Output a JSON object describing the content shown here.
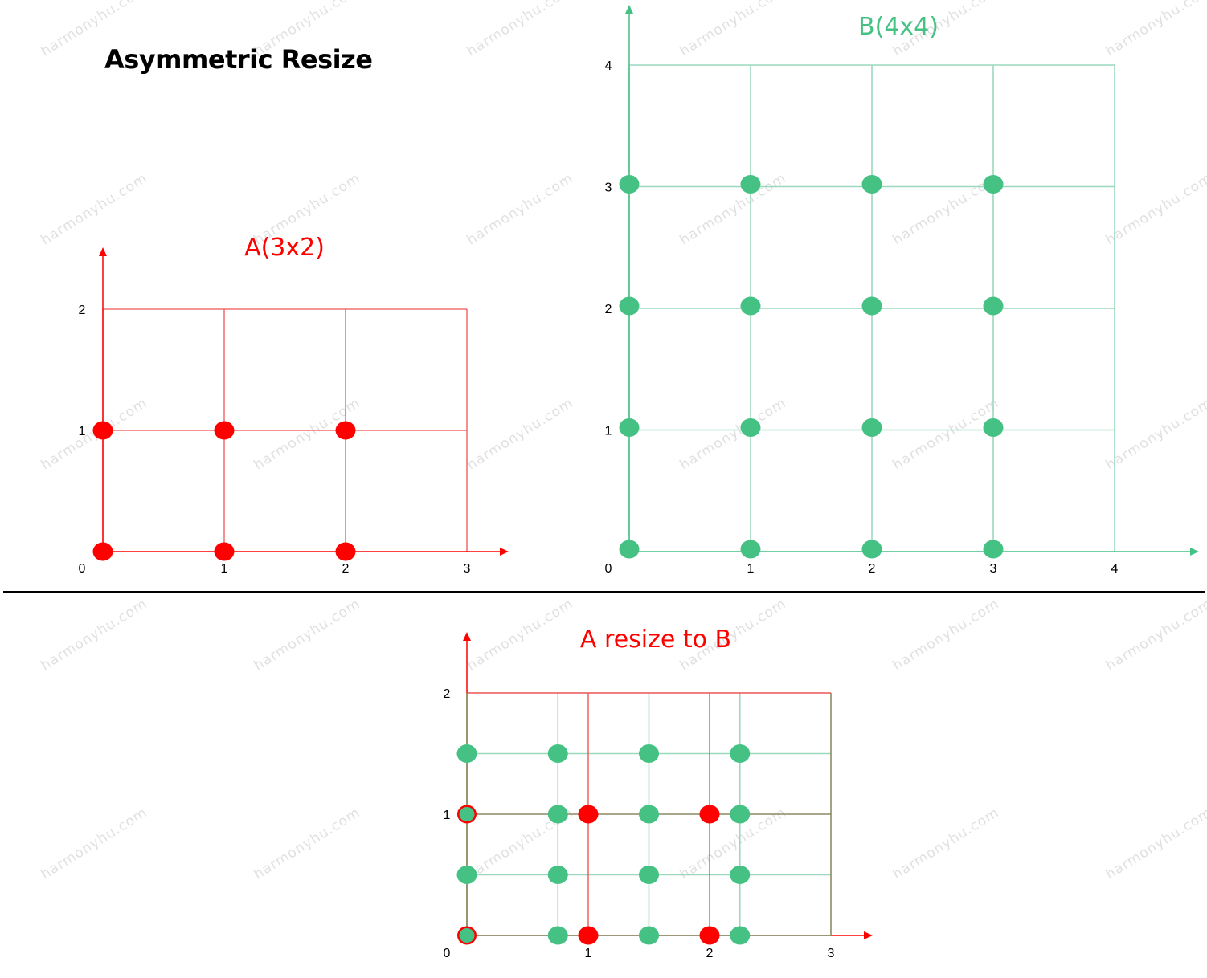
{
  "title": "Asymmetric Resize",
  "watermark": "harmonyhu.com",
  "colors": {
    "red": "#ff0000",
    "red_grid": "#ee5555",
    "green": "#45c184",
    "green_grid": "#9ad8bd",
    "olive_grid": "#8c8a62"
  },
  "panels": [
    {
      "id": "panel-a",
      "title": "A(3x2)",
      "title_color": "#ff0000",
      "x_ticks": [
        "0",
        "1",
        "2",
        "3"
      ],
      "y_ticks": [
        "0",
        "1",
        "2"
      ],
      "points": [
        {
          "x": 0,
          "y": 0
        },
        {
          "x": 1,
          "y": 0
        },
        {
          "x": 2,
          "y": 0
        },
        {
          "x": 0,
          "y": 1
        },
        {
          "x": 1,
          "y": 1
        },
        {
          "x": 2,
          "y": 1
        }
      ]
    },
    {
      "id": "panel-b",
      "title": "B(4x4)",
      "title_color": "#45c184",
      "x_ticks": [
        "0",
        "1",
        "2",
        "3",
        "4"
      ],
      "y_ticks": [
        "0",
        "1",
        "2",
        "3",
        "4"
      ],
      "points": [
        {
          "x": 0,
          "y": 0
        },
        {
          "x": 1,
          "y": 0
        },
        {
          "x": 2,
          "y": 0
        },
        {
          "x": 3,
          "y": 0
        },
        {
          "x": 0,
          "y": 1
        },
        {
          "x": 1,
          "y": 1
        },
        {
          "x": 2,
          "y": 1
        },
        {
          "x": 3,
          "y": 1
        },
        {
          "x": 0,
          "y": 2
        },
        {
          "x": 1,
          "y": 2
        },
        {
          "x": 2,
          "y": 2
        },
        {
          "x": 3,
          "y": 2
        },
        {
          "x": 0,
          "y": 3
        },
        {
          "x": 1,
          "y": 3
        },
        {
          "x": 2,
          "y": 3
        },
        {
          "x": 3,
          "y": 3
        }
      ]
    },
    {
      "id": "panel-c",
      "title": "A resize to B",
      "title_color": "#ff0000",
      "x_ticks": [
        "0",
        "1",
        "2",
        "3"
      ],
      "y_ticks": [
        "0",
        "1",
        "2"
      ],
      "green_points": [
        {
          "x": 0,
          "y": 0
        },
        {
          "x": 0.75,
          "y": 0
        },
        {
          "x": 1.5,
          "y": 0
        },
        {
          "x": 2.25,
          "y": 0
        },
        {
          "x": 0,
          "y": 0.5
        },
        {
          "x": 0.75,
          "y": 0.5
        },
        {
          "x": 1.5,
          "y": 0.5
        },
        {
          "x": 2.25,
          "y": 0.5
        },
        {
          "x": 0,
          "y": 1
        },
        {
          "x": 0.75,
          "y": 1
        },
        {
          "x": 1.5,
          "y": 1
        },
        {
          "x": 2.25,
          "y": 1
        },
        {
          "x": 0,
          "y": 1.5
        },
        {
          "x": 0.75,
          "y": 1.5
        },
        {
          "x": 1.5,
          "y": 1.5
        },
        {
          "x": 2.25,
          "y": 1.5
        }
      ],
      "red_points": [
        {
          "x": 0,
          "y": 0
        },
        {
          "x": 1,
          "y": 0
        },
        {
          "x": 2,
          "y": 0
        },
        {
          "x": 0,
          "y": 1
        },
        {
          "x": 1,
          "y": 1
        },
        {
          "x": 2,
          "y": 1
        }
      ]
    }
  ]
}
